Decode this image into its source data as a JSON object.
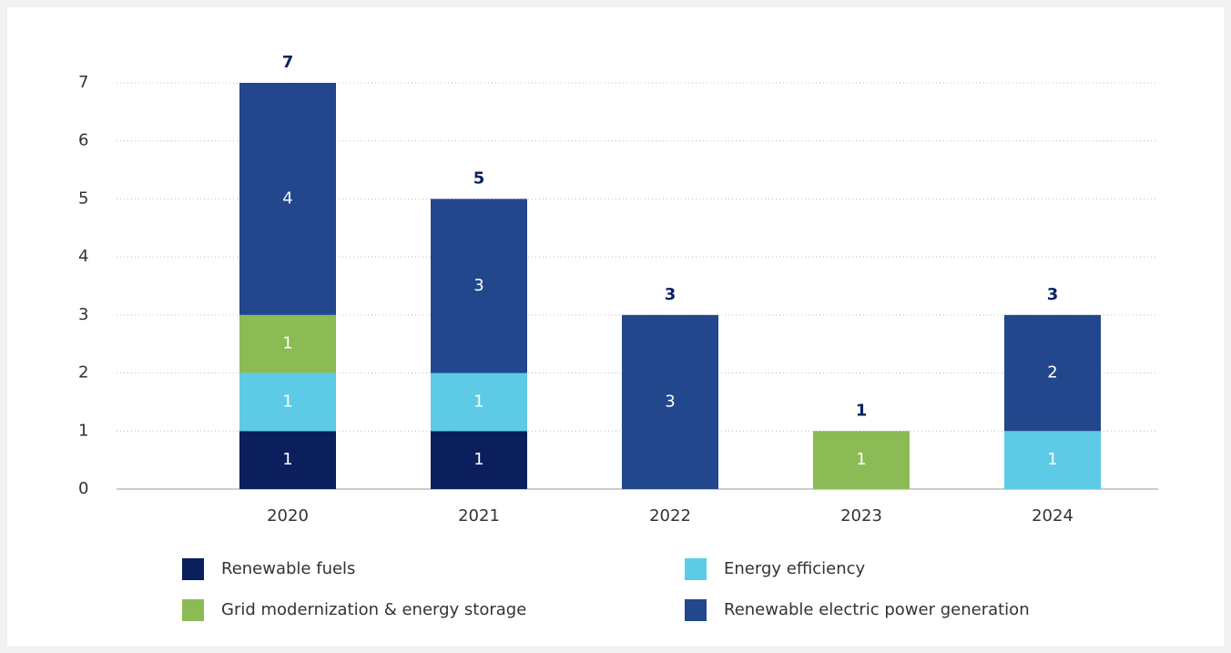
{
  "chart_data": {
    "type": "stacked_bar",
    "categories": [
      "2020",
      "2021",
      "2022",
      "2023",
      "2024"
    ],
    "series": [
      {
        "name": "Renewable fuels",
        "color": "#0a1f5c",
        "values": [
          1,
          1,
          null,
          null,
          null
        ]
      },
      {
        "name": "Energy efficiency",
        "color": "#5ecbe6",
        "values": [
          1,
          1,
          null,
          null,
          1
        ]
      },
      {
        "name": "Grid modernization & energy storage",
        "color": "#8bbb55",
        "values": [
          1,
          null,
          null,
          1,
          null
        ]
      },
      {
        "name": "Renewable electric power generation",
        "color": "#22478c",
        "values": [
          4,
          3,
          3,
          null,
          2
        ]
      }
    ],
    "totals": [
      7,
      5,
      3,
      1,
      3
    ],
    "ylim": [
      0,
      7
    ],
    "yticks": [
      0,
      1,
      2,
      3,
      4,
      5,
      6,
      7
    ],
    "grid": true
  }
}
